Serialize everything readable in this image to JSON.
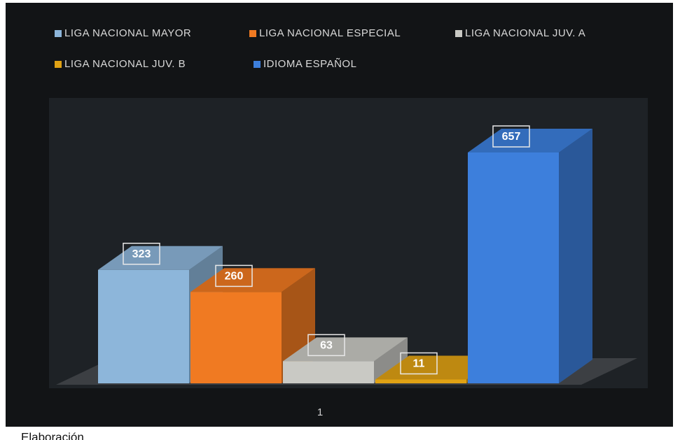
{
  "chart_data": {
    "type": "bar3d",
    "categories": [
      "1"
    ],
    "series": [
      {
        "name": "LIGA NACIONAL  MAYOR",
        "color": "#8db6da",
        "values": [
          323
        ]
      },
      {
        "name": "LIGA NACIONAL  ESPECIAL",
        "color": "#f07a22",
        "values": [
          260
        ]
      },
      {
        "name": "LIGA NACIONAL  JUV. A",
        "color": "#c9c9c4",
        "values": [
          63
        ]
      },
      {
        "name": "LIGA NACIONAL  JUV. B",
        "color": "#e0a214",
        "values": [
          11
        ]
      },
      {
        "name": "IDIOMA  ESPAÑOL",
        "color": "#3d7fdc",
        "values": [
          657
        ]
      }
    ],
    "caption": "Elaboración"
  }
}
